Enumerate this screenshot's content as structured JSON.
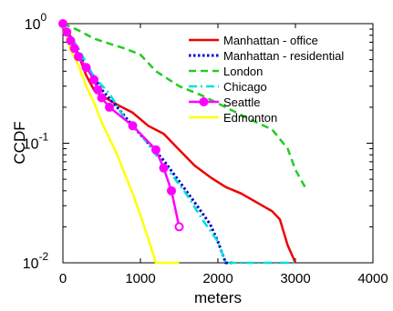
{
  "chart_data": {
    "type": "line",
    "title": "",
    "xlabel": "meters",
    "ylabel": "CCDF",
    "x_scale": "linear",
    "y_scale": "log",
    "xlim": [
      0,
      4000
    ],
    "ylim": [
      0.01,
      1
    ],
    "x_ticks": [
      0,
      1000,
      2000,
      3000,
      4000
    ],
    "x_tick_labels": [
      "0",
      "1000",
      "2000",
      "3000",
      "4000"
    ],
    "y_ticks": [
      {
        "value": 1,
        "base": "10",
        "exp": "0"
      },
      {
        "value": 0.1,
        "base": "10",
        "exp": "-1"
      },
      {
        "value": 0.01,
        "base": "10",
        "exp": "-2"
      }
    ],
    "grid": false,
    "legend_position": "top-right",
    "series": [
      {
        "name": "Manhattan - office",
        "color": "#ee0000",
        "dash": "solid",
        "marker": "none",
        "points": [
          [
            0,
            1.0
          ],
          [
            100,
            0.78
          ],
          [
            200,
            0.55
          ],
          [
            300,
            0.37
          ],
          [
            400,
            0.28
          ],
          [
            500,
            0.25
          ],
          [
            700,
            0.21
          ],
          [
            900,
            0.18
          ],
          [
            1100,
            0.14
          ],
          [
            1300,
            0.12
          ],
          [
            1500,
            0.088
          ],
          [
            1700,
            0.065
          ],
          [
            1900,
            0.052
          ],
          [
            2100,
            0.043
          ],
          [
            2300,
            0.038
          ],
          [
            2500,
            0.032
          ],
          [
            2700,
            0.027
          ],
          [
            2800,
            0.023
          ],
          [
            2900,
            0.014
          ],
          [
            3000,
            0.01
          ]
        ]
      },
      {
        "name": "Manhattan - residential",
        "color": "#0000cc",
        "dash": "dotted",
        "marker": "none",
        "points": [
          [
            0,
            1.0
          ],
          [
            100,
            0.72
          ],
          [
            200,
            0.55
          ],
          [
            300,
            0.44
          ],
          [
            400,
            0.36
          ],
          [
            500,
            0.28
          ],
          [
            700,
            0.2
          ],
          [
            900,
            0.14
          ],
          [
            1100,
            0.1
          ],
          [
            1300,
            0.072
          ],
          [
            1500,
            0.048
          ],
          [
            1700,
            0.032
          ],
          [
            1900,
            0.021
          ],
          [
            2000,
            0.015
          ],
          [
            2100,
            0.01
          ],
          [
            2200,
            0.01
          ]
        ]
      },
      {
        "name": "London",
        "color": "#22cc22",
        "dash": "dashed",
        "marker": "none",
        "points": [
          [
            0,
            1.0
          ],
          [
            200,
            0.88
          ],
          [
            400,
            0.75
          ],
          [
            600,
            0.68
          ],
          [
            800,
            0.62
          ],
          [
            1000,
            0.55
          ],
          [
            1200,
            0.4
          ],
          [
            1500,
            0.3
          ],
          [
            1800,
            0.25
          ],
          [
            2100,
            0.2
          ],
          [
            2400,
            0.16
          ],
          [
            2700,
            0.13
          ],
          [
            2900,
            0.09
          ],
          [
            3000,
            0.06
          ],
          [
            3150,
            0.04
          ]
        ]
      },
      {
        "name": "Chicago",
        "color": "#00dddd",
        "dash": "dashdot",
        "marker": "none",
        "points": [
          [
            0,
            1.0
          ],
          [
            100,
            0.78
          ],
          [
            200,
            0.62
          ],
          [
            300,
            0.47
          ],
          [
            400,
            0.36
          ],
          [
            600,
            0.26
          ],
          [
            800,
            0.16
          ],
          [
            1000,
            0.12
          ],
          [
            1200,
            0.08
          ],
          [
            1400,
            0.055
          ],
          [
            1600,
            0.037
          ],
          [
            1800,
            0.023
          ],
          [
            2000,
            0.015
          ],
          [
            2100,
            0.01
          ],
          [
            3000,
            0.01
          ]
        ]
      },
      {
        "name": "Seattle",
        "color": "#ff00ff",
        "dash": "solid",
        "marker": "circle",
        "points": [
          [
            0,
            1.0
          ],
          [
            50,
            0.85
          ],
          [
            100,
            0.72
          ],
          [
            150,
            0.62
          ],
          [
            200,
            0.53
          ],
          [
            300,
            0.43
          ],
          [
            400,
            0.34
          ],
          [
            450,
            0.28
          ],
          [
            500,
            0.24
          ],
          [
            600,
            0.2
          ],
          [
            900,
            0.14
          ],
          [
            1200,
            0.088
          ],
          [
            1300,
            0.062
          ],
          [
            1400,
            0.04
          ],
          [
            1500,
            0.02
          ]
        ]
      },
      {
        "name": "Edmonton",
        "color": "#ffff00",
        "dash": "solid",
        "marker": "none",
        "points": [
          [
            0,
            1.0
          ],
          [
            100,
            0.6
          ],
          [
            200,
            0.45
          ],
          [
            300,
            0.3
          ],
          [
            400,
            0.22
          ],
          [
            500,
            0.15
          ],
          [
            600,
            0.11
          ],
          [
            700,
            0.08
          ],
          [
            800,
            0.055
          ],
          [
            900,
            0.038
          ],
          [
            1000,
            0.025
          ],
          [
            1100,
            0.016
          ],
          [
            1200,
            0.01
          ],
          [
            1500,
            0.01
          ]
        ]
      }
    ]
  }
}
